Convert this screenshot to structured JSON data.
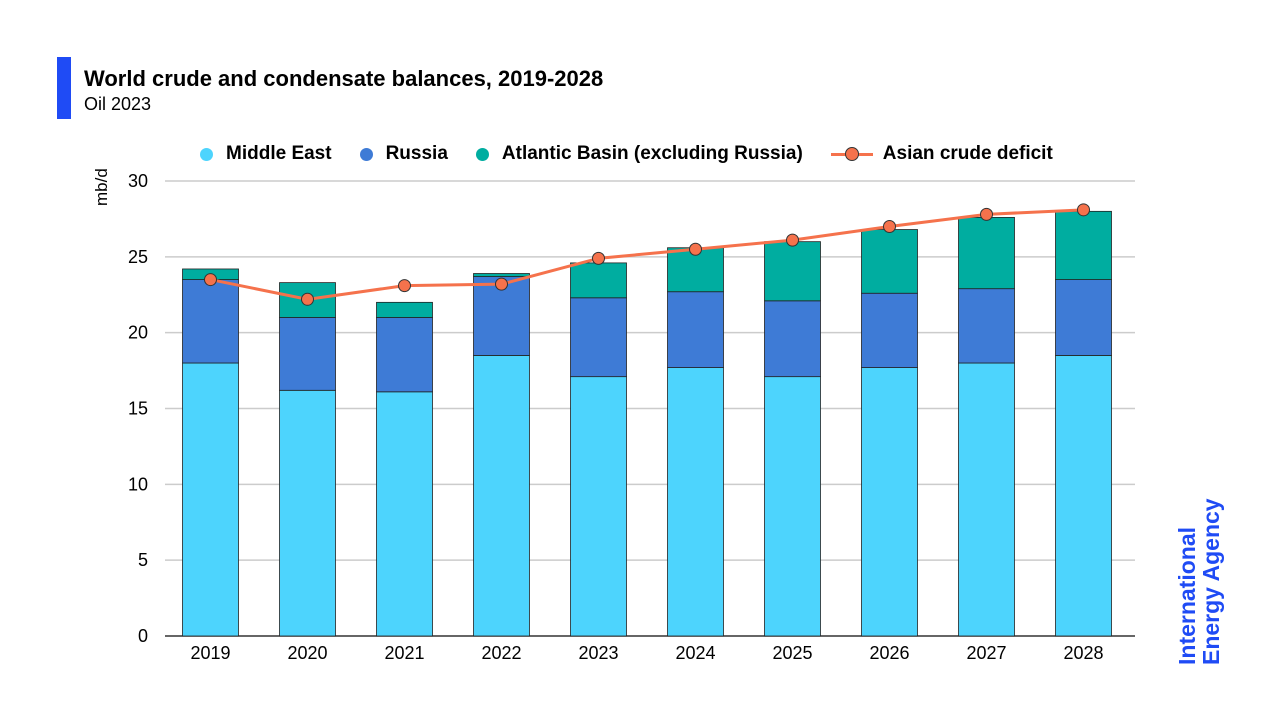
{
  "header": {
    "title": "World crude and condensate balances, 2019-2028",
    "subtitle": "Oil 2023"
  },
  "logo_text": "International\nEnergy Agency",
  "colors": {
    "accent": "#1f4bf5",
    "middle_east": "#4dd4fd",
    "russia": "#3e7bd6",
    "atlantic": "#00ada0",
    "line": "#f5724c"
  },
  "chart_data": {
    "type": "bar",
    "stacked": true,
    "title": "World crude and condensate balances, 2019-2028",
    "ylabel": "mb/d",
    "xlabel": "",
    "ylim": [
      0,
      30
    ],
    "yticks": [
      0,
      5,
      10,
      15,
      20,
      25,
      30
    ],
    "grid": true,
    "legend_position": "top",
    "categories": [
      "2019",
      "2020",
      "2021",
      "2022",
      "2023",
      "2024",
      "2025",
      "2026",
      "2027",
      "2028"
    ],
    "series": [
      {
        "name": "Middle East",
        "type": "bar",
        "color": "#4dd4fd",
        "values": [
          18.0,
          16.2,
          16.1,
          18.5,
          17.1,
          17.7,
          17.1,
          17.7,
          18.0,
          18.5
        ]
      },
      {
        "name": "Russia",
        "type": "bar",
        "color": "#3e7bd6",
        "values": [
          5.5,
          4.8,
          4.9,
          5.2,
          5.2,
          5.0,
          5.0,
          4.9,
          4.9,
          5.0
        ]
      },
      {
        "name": "Atlantic Basin (excluding Russia)",
        "type": "bar",
        "color": "#00ada0",
        "values": [
          0.7,
          2.3,
          1.0,
          0.2,
          2.3,
          2.9,
          3.9,
          4.2,
          4.7,
          4.5
        ]
      },
      {
        "name": "Asian crude deficit",
        "type": "line",
        "color": "#f5724c",
        "values": [
          23.5,
          22.2,
          23.1,
          23.2,
          24.9,
          25.5,
          26.1,
          27.0,
          27.8,
          28.1
        ]
      }
    ]
  }
}
